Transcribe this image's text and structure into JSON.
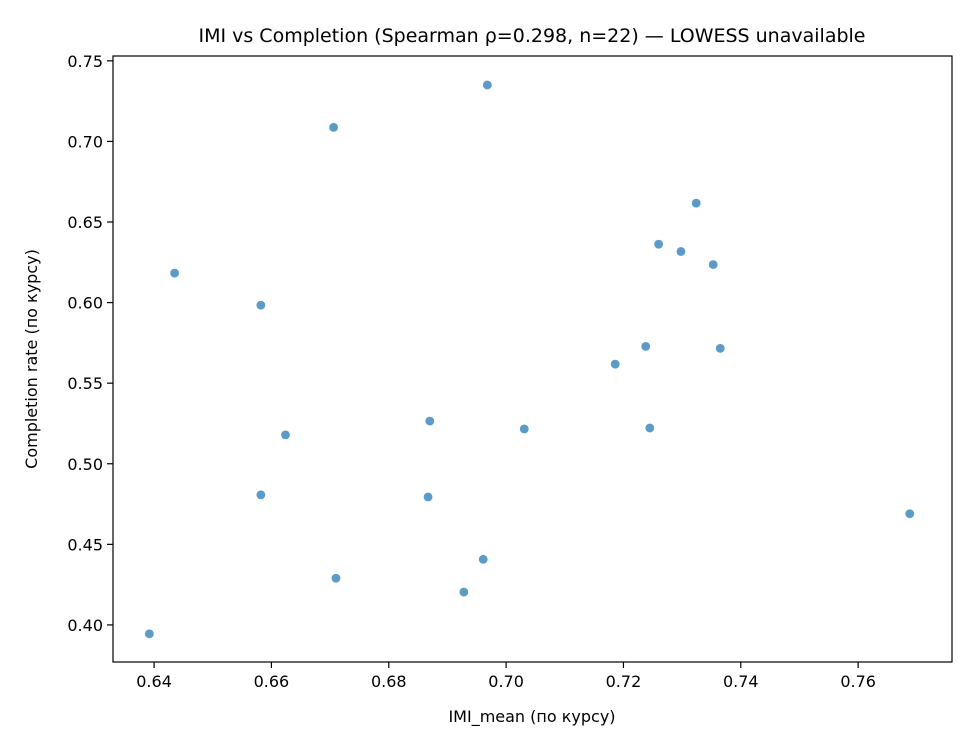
{
  "chart_data": {
    "type": "scatter",
    "title": "IMI vs Completion (Spearman ρ=0.298, n=22) — LOWESS unavailable",
    "xlabel": "IMI_mean (по курсу)",
    "ylabel": "Completion rate (по курсу)",
    "xlim": [
      0.633,
      0.776
    ],
    "ylim": [
      0.377,
      0.753
    ],
    "xticks": [
      0.64,
      0.66,
      0.68,
      0.7,
      0.72,
      0.74,
      0.76
    ],
    "xtick_labels": [
      "0.64",
      "0.66",
      "0.68",
      "0.70",
      "0.72",
      "0.74",
      "0.76"
    ],
    "yticks": [
      0.4,
      0.45,
      0.5,
      0.55,
      0.6,
      0.65,
      0.7,
      0.75
    ],
    "ytick_labels": [
      "0.40",
      "0.45",
      "0.50",
      "0.55",
      "0.60",
      "0.65",
      "0.70",
      "0.75"
    ],
    "grid": false,
    "marker_color": "#5b9bc8",
    "points": [
      {
        "x": 0.6392,
        "y": 0.3945
      },
      {
        "x": 0.6435,
        "y": 0.6183
      },
      {
        "x": 0.6582,
        "y": 0.5984
      },
      {
        "x": 0.6582,
        "y": 0.4807
      },
      {
        "x": 0.6624,
        "y": 0.5179
      },
      {
        "x": 0.6706,
        "y": 0.7087
      },
      {
        "x": 0.671,
        "y": 0.429
      },
      {
        "x": 0.6867,
        "y": 0.4794
      },
      {
        "x": 0.687,
        "y": 0.5265
      },
      {
        "x": 0.6928,
        "y": 0.4204
      },
      {
        "x": 0.6961,
        "y": 0.4407
      },
      {
        "x": 0.6968,
        "y": 0.735
      },
      {
        "x": 0.7031,
        "y": 0.5216
      },
      {
        "x": 0.7186,
        "y": 0.5618
      },
      {
        "x": 0.7238,
        "y": 0.5728
      },
      {
        "x": 0.7245,
        "y": 0.5222
      },
      {
        "x": 0.726,
        "y": 0.6362
      },
      {
        "x": 0.7298,
        "y": 0.6317
      },
      {
        "x": 0.7324,
        "y": 0.6617
      },
      {
        "x": 0.7353,
        "y": 0.6236
      },
      {
        "x": 0.7365,
        "y": 0.5716
      },
      {
        "x": 0.7688,
        "y": 0.469
      }
    ]
  }
}
